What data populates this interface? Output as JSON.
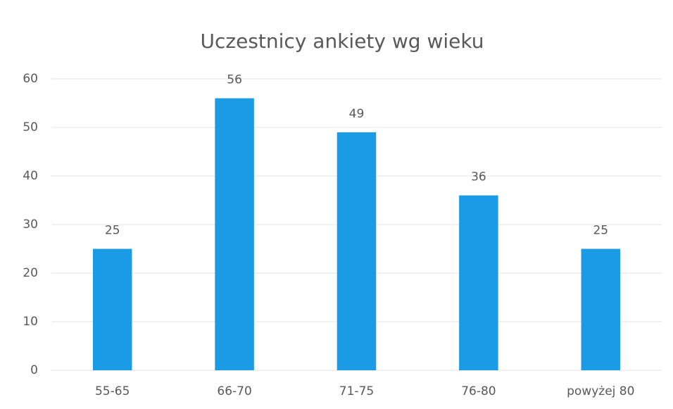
{
  "chart_data": {
    "type": "bar",
    "title": "Uczestnicy ankiety wg wieku",
    "categories": [
      "55-65",
      "66-70",
      "71-75",
      "76-80",
      "powyżej 80"
    ],
    "values": [
      25,
      56,
      49,
      36,
      25
    ],
    "color": "#1a9be3",
    "ylim": [
      0,
      60
    ],
    "yticks": [
      0,
      10,
      20,
      30,
      40,
      50,
      60
    ],
    "grid": true
  }
}
